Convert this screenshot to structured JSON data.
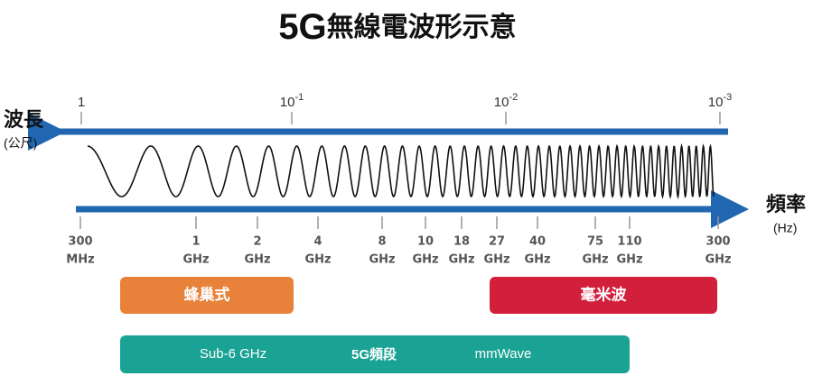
{
  "title": {
    "main": "5G",
    "rest": "無線電波形示意"
  },
  "wavelength": {
    "label": "波長",
    "unit": "(公尺)",
    "ticks": [
      {
        "base": "1"
      },
      {
        "base": "10",
        "exp": "-1"
      },
      {
        "base": "10",
        "exp": "-2"
      },
      {
        "base": "10",
        "exp": "-3"
      }
    ]
  },
  "frequency": {
    "label": "頻率",
    "unit": "(Hz)",
    "ticks": [
      {
        "value": "300",
        "unit": "MHz"
      },
      {
        "value": "1",
        "unit": "GHz"
      },
      {
        "value": "2",
        "unit": "GHz"
      },
      {
        "value": "4",
        "unit": "GHz"
      },
      {
        "value": "8",
        "unit": "GHz"
      },
      {
        "value": "10",
        "unit": "GHz"
      },
      {
        "value": "18",
        "unit": "GHz"
      },
      {
        "value": "27",
        "unit": "GHz"
      },
      {
        "value": "40",
        "unit": "GHz"
      },
      {
        "value": "75",
        "unit": "GHz"
      },
      {
        "value": "110",
        "unit": "GHz"
      },
      {
        "value": "300",
        "unit": "GHz"
      }
    ]
  },
  "bands": {
    "cellular": "蜂巢式",
    "mmwave": "毫米波"
  },
  "bottom_bar": {
    "left": "Sub-6 GHz",
    "center": "5G頻段",
    "right": "mmWave"
  }
}
